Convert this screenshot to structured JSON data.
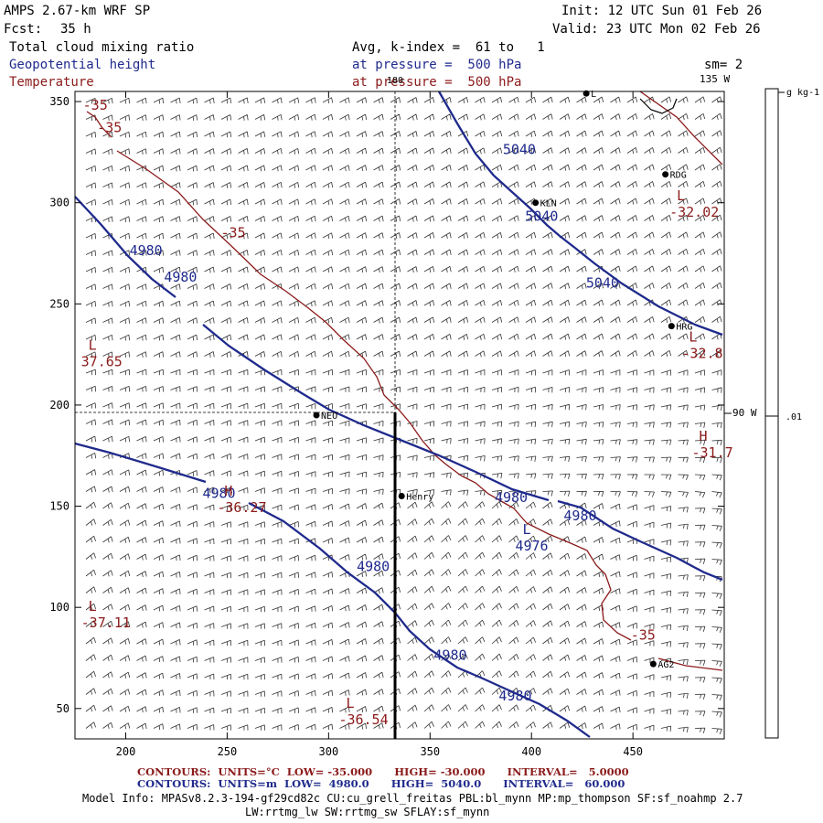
{
  "header": {
    "model_title": "AMPS 2.67-km WRF SP",
    "forecast_label": "Fcst:",
    "forecast_hours": "35 h",
    "init": "Init: 12 UTC Sun 01 Feb 26",
    "valid": "Valid: 23 UTC Mon 02 Feb 26"
  },
  "fields": {
    "shade": {
      "name": "Total cloud mixing ratio",
      "detail": "Avg, k-index =  61 to   1",
      "color": "#000000"
    },
    "height": {
      "name": "Geopotential height",
      "detail": "at pressure =  500 hPa",
      "color": "#1f2a8c"
    },
    "temp": {
      "name": "Temperature",
      "detail": "at pressure =  500 hPa",
      "color": "#8b1a1a"
    },
    "smoothing": "sm= 2"
  },
  "axes": {
    "x_ticks": [
      200,
      250,
      300,
      350,
      400,
      450
    ],
    "y_ticks": [
      50,
      100,
      150,
      200,
      250,
      300,
      350
    ],
    "x_range": [
      175,
      495
    ],
    "y_range": [
      35,
      355
    ]
  },
  "longitude_labels": {
    "top_180": "180",
    "top_135": "135 W",
    "right_90": "90 W"
  },
  "colorbar": {
    "units": "g kg-1",
    "tick_label": ".01"
  },
  "stations": [
    {
      "name": "RDG",
      "x": 466,
      "y": 314
    },
    {
      "name": "KLN",
      "x": 402,
      "y": 300
    },
    {
      "name": "HRG",
      "x": 469,
      "y": 239
    },
    {
      "name": "NEO",
      "x": 294,
      "y": 195
    },
    {
      "name": "Henry",
      "x": 336,
      "y": 155
    },
    {
      "name": "AG2",
      "x": 460,
      "y": 72
    },
    {
      "name": "L",
      "x": 427,
      "y": 354
    }
  ],
  "height_labels": [
    {
      "text": "5040",
      "x": 394,
      "y": 324
    },
    {
      "text": "5040",
      "x": 405,
      "y": 291
    },
    {
      "text": "5040",
      "x": 435,
      "y": 258
    },
    {
      "text": "4980",
      "x": 210,
      "y": 274
    },
    {
      "text": "4980",
      "x": 227,
      "y": 261
    },
    {
      "text": "4980",
      "x": 246,
      "y": 154
    },
    {
      "text": "4980",
      "x": 390,
      "y": 152
    },
    {
      "text": "4980",
      "x": 424,
      "y": 143
    },
    {
      "text": "4980",
      "x": 322,
      "y": 118
    },
    {
      "text": "4980",
      "x": 360,
      "y": 74
    },
    {
      "text": "4980",
      "x": 392,
      "y": 54
    }
  ],
  "temp_labels": [
    {
      "text": "-35",
      "x": 185,
      "y": 346
    },
    {
      "text": "-35",
      "x": 192,
      "y": 335
    },
    {
      "text": "-35",
      "x": 253,
      "y": 283
    },
    {
      "text": "-35",
      "x": 455,
      "y": 84
    }
  ],
  "extrema": [
    {
      "letter": "L",
      "value": "-32.02",
      "x": 468,
      "y": 295,
      "color": "red"
    },
    {
      "letter": "L",
      "value": "37.65",
      "x": 178,
      "y": 221,
      "color": "red"
    },
    {
      "letter": "L",
      "value": "-32.8",
      "x": 474,
      "y": 225,
      "color": "red"
    },
    {
      "letter": "H",
      "value": "-31.7",
      "x": 479,
      "y": 176,
      "color": "red"
    },
    {
      "letter": "H",
      "value": "-36.27",
      "x": 245,
      "y": 149,
      "color": "red"
    },
    {
      "letter": "L",
      "value": "4976",
      "x": 392,
      "y": 130,
      "color": "blue"
    },
    {
      "letter": "L",
      "value": "-37.11",
      "x": 178,
      "y": 92,
      "color": "red"
    },
    {
      "letter": "L",
      "value": "-36.54",
      "x": 305,
      "y": 44,
      "color": "red"
    }
  ],
  "footer": {
    "temp_contours": "CONTOURS:  UNITS=°C  LOW= -35.000      HIGH= -30.000      INTERVAL=   5.0000",
    "height_contours": "CONTOURS:  UNITS=m  LOW=  4980.0      HIGH=  5040.0      INTERVAL=   60.000",
    "model_info": "Model Info: MPASv8.2.3-194-gf29cd82c CU:cu_grell_freitas PBL:bl_mynn MP:mp_thompson SF:sf_noahmp 2.7",
    "model_info_2": "LW:rrtmg_lw SW:rrtmg_sw SFLAY:sf_mynn"
  },
  "colors": {
    "height": "#1f2a8c",
    "temp": "#8b1a1a",
    "barb": "#000000",
    "frame": "#000000"
  }
}
